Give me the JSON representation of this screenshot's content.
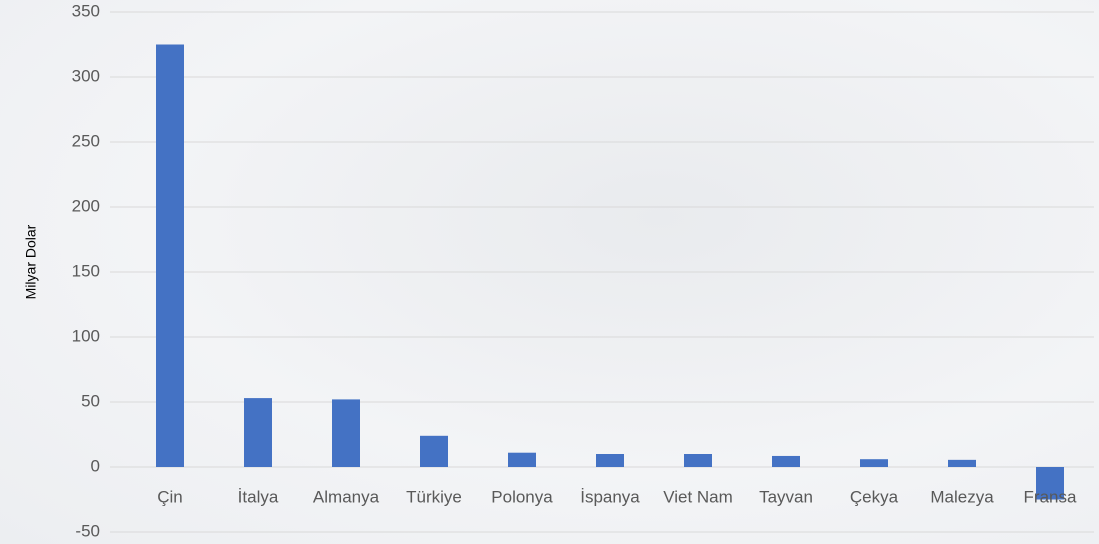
{
  "chart_data": {
    "type": "bar",
    "y_label": "Milyar Dolar",
    "categories": [
      "Çin",
      "İtalya",
      "Almanya",
      "Türkiye",
      "Polonya",
      "İspanya",
      "Viet Nam",
      "Tayvan",
      "Çekya",
      "Malezya",
      "Fransa"
    ],
    "values": [
      325,
      53,
      52,
      24,
      11,
      10,
      10,
      8.5,
      6,
      5.5,
      -25
    ],
    "color": "#4472c4",
    "ylim": [
      -50,
      350
    ],
    "yticks": [
      -50,
      0,
      50,
      100,
      150,
      200,
      250,
      300,
      350
    ],
    "grid": true
  }
}
